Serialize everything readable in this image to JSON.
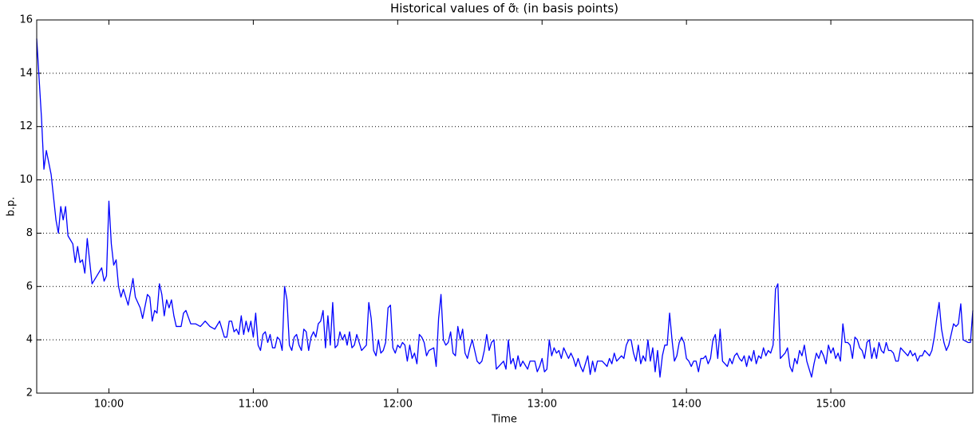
{
  "chart_data": {
    "type": "line",
    "title": "Historical values of σ̃ₜ (in basis points)",
    "xlabel": "Time",
    "ylabel": "b.p.",
    "x": [
      570,
      572,
      573,
      574,
      576,
      578,
      579,
      580,
      581,
      582,
      583,
      585,
      586,
      587,
      588,
      589,
      590,
      591,
      593,
      595,
      597,
      598,
      599,
      600,
      601,
      602,
      603,
      604,
      605,
      606,
      608,
      610,
      611,
      613,
      614,
      616,
      617,
      618,
      619,
      620,
      621,
      622,
      623,
      624,
      625,
      626,
      627,
      628,
      630,
      631,
      632,
      634,
      636,
      638,
      640,
      642,
      644,
      646,
      648,
      649,
      650,
      651,
      652,
      653,
      654,
      655,
      656,
      657,
      658,
      659,
      660,
      661,
      662,
      663,
      664,
      665,
      666,
      667,
      668,
      669,
      670,
      671,
      672,
      673,
      674,
      675,
      676,
      677,
      678,
      679,
      680,
      681,
      682,
      683,
      684,
      685,
      686,
      687,
      688,
      689,
      690,
      691,
      692,
      693,
      694,
      695,
      696,
      697,
      698,
      699,
      700,
      701,
      702,
      703,
      705,
      707,
      708,
      709,
      710,
      711,
      712,
      713,
      714,
      715,
      716,
      717,
      718,
      719,
      720,
      721,
      722,
      723,
      724,
      725,
      726,
      727,
      728,
      729,
      730,
      731,
      732,
      733,
      735,
      736,
      737,
      738,
      739,
      740,
      741,
      742,
      743,
      744,
      745,
      746,
      747,
      748,
      749,
      750,
      751,
      752,
      753,
      754,
      755,
      756,
      757,
      758,
      759,
      760,
      761,
      763,
      764,
      765,
      766,
      767,
      768,
      769,
      770,
      771,
      772,
      774,
      775,
      777,
      778,
      779,
      780,
      781,
      782,
      783,
      784,
      785,
      786,
      787,
      788,
      789,
      790,
      791,
      792,
      793,
      794,
      795,
      796,
      797,
      798,
      799,
      800,
      801,
      802,
      803,
      805,
      806,
      807,
      808,
      809,
      810,
      811,
      812,
      813,
      814,
      815,
      816,
      817,
      818,
      819,
      820,
      821,
      822,
      823,
      824,
      825,
      826,
      827,
      828,
      829,
      830,
      831,
      832,
      833,
      834,
      835,
      836,
      837,
      838,
      839,
      840,
      841,
      842,
      843,
      844,
      845,
      846,
      847,
      848,
      849,
      850,
      851,
      852,
      853,
      854,
      855,
      856,
      857,
      858,
      859,
      860,
      861,
      862,
      863,
      864,
      865,
      866,
      867,
      868,
      869,
      870,
      871,
      872,
      873,
      874,
      875,
      876,
      877,
      878,
      879,
      880,
      881,
      882,
      883,
      884,
      885,
      886,
      887,
      888,
      889,
      890,
      891,
      892,
      893,
      894,
      895,
      896,
      897,
      898,
      899,
      900,
      901,
      902,
      903,
      904,
      905,
      906,
      907,
      908,
      909,
      910,
      911,
      912,
      913,
      914,
      915,
      916,
      917,
      918,
      919,
      920,
      921,
      922,
      923,
      924,
      925,
      926,
      927,
      928,
      929,
      930,
      931,
      932,
      933,
      934,
      935,
      936,
      937,
      938,
      939,
      940,
      941,
      942,
      943,
      944,
      945,
      946,
      947,
      948,
      949,
      950,
      951,
      952,
      953,
      954,
      955,
      956,
      957,
      958,
      959
    ],
    "series": [
      {
        "name": "sigma",
        "color": "#0000ff",
        "values": [
          15.3,
          12.3,
          10.4,
          11.1,
          10.2,
          8.5,
          8.0,
          9.0,
          8.5,
          9.0,
          7.9,
          7.6,
          6.9,
          7.5,
          6.9,
          7.0,
          6.5,
          7.8,
          6.1,
          6.4,
          6.7,
          6.2,
          6.4,
          9.2,
          7.6,
          6.8,
          7.0,
          6.0,
          5.6,
          5.9,
          5.3,
          6.3,
          5.6,
          5.2,
          4.8,
          5.7,
          5.6,
          4.7,
          5.1,
          5.0,
          6.1,
          5.7,
          4.9,
          5.5,
          5.2,
          5.5,
          4.9,
          4.5,
          4.5,
          5.0,
          5.1,
          4.6,
          4.6,
          4.5,
          4.7,
          4.5,
          4.4,
          4.7,
          4.1,
          4.1,
          4.7,
          4.7,
          4.3,
          4.4,
          4.2,
          4.9,
          4.2,
          4.7,
          4.3,
          4.7,
          4.1,
          5.0,
          3.8,
          3.6,
          4.2,
          4.3,
          3.9,
          4.2,
          3.7,
          3.7,
          4.1,
          4.0,
          3.6,
          6.0,
          5.5,
          3.8,
          3.6,
          4.1,
          4.2,
          3.8,
          3.6,
          4.4,
          4.3,
          3.6,
          4.1,
          4.3,
          4.1,
          4.6,
          4.7,
          5.1,
          3.7,
          4.9,
          3.8,
          5.4,
          3.7,
          3.8,
          4.3,
          4.0,
          4.2,
          3.8,
          4.3,
          3.7,
          3.8,
          4.2,
          3.6,
          3.8,
          5.4,
          4.8,
          3.6,
          3.4,
          4.0,
          3.5,
          3.6,
          3.9,
          5.2,
          5.3,
          3.7,
          3.5,
          3.8,
          3.7,
          3.9,
          3.8,
          3.2,
          3.8,
          3.3,
          3.5,
          3.1,
          4.2,
          4.1,
          3.9,
          3.4,
          3.6,
          3.7,
          3.0,
          4.8,
          5.7,
          4.0,
          3.8,
          3.9,
          4.3,
          3.5,
          3.4,
          4.5,
          4.0,
          4.4,
          3.5,
          3.3,
          3.7,
          4.0,
          3.6,
          3.2,
          3.1,
          3.2,
          3.6,
          4.2,
          3.6,
          3.9,
          4.0,
          2.9,
          3.1,
          3.2,
          2.9,
          4.0,
          3.1,
          3.3,
          2.9,
          3.4,
          3.0,
          3.2,
          2.9,
          3.2,
          3.2,
          2.8,
          3.0,
          3.3,
          2.8,
          2.9,
          4.0,
          3.4,
          3.7,
          3.5,
          3.6,
          3.3,
          3.7,
          3.5,
          3.3,
          3.5,
          3.3,
          3.0,
          3.3,
          3.0,
          2.8,
          3.1,
          3.4,
          2.7,
          3.2,
          2.8,
          3.2,
          3.2,
          3.1,
          3.0,
          3.3,
          3.1,
          3.5,
          3.2,
          3.3,
          3.4,
          3.3,
          3.8,
          4.0,
          4.0,
          3.5,
          3.2,
          3.8,
          3.1,
          3.4,
          3.2,
          4.0,
          3.2,
          3.7,
          2.8,
          3.6,
          2.6,
          3.4,
          3.8,
          3.8,
          5.0,
          4.0,
          3.2,
          3.4,
          3.9,
          4.1,
          3.9,
          3.3,
          3.2,
          3.0,
          3.2,
          3.2,
          2.8,
          3.3,
          3.3,
          3.4,
          3.1,
          3.3,
          4.0,
          4.2,
          3.3,
          4.4,
          3.2,
          3.1,
          3.0,
          3.3,
          3.1,
          3.4,
          3.5,
          3.3,
          3.2,
          3.4,
          3.0,
          3.4,
          3.2,
          3.6,
          3.1,
          3.4,
          3.3,
          3.7,
          3.4,
          3.6,
          3.5,
          3.8,
          5.9,
          6.1,
          3.3,
          3.4,
          3.5,
          3.7,
          3.0,
          2.8,
          3.3,
          3.1,
          3.6,
          3.4,
          3.8,
          3.2,
          2.9,
          2.6,
          3.1,
          3.5,
          3.3,
          3.6,
          3.4,
          3.1,
          3.8,
          3.5,
          3.7,
          3.3,
          3.5,
          3.2,
          4.6,
          3.9,
          3.9,
          3.8,
          3.3,
          4.1,
          4.0,
          3.7,
          3.6,
          3.3,
          3.9,
          4.0,
          3.3,
          3.7,
          3.3,
          3.9,
          3.6,
          3.5,
          3.9,
          3.6,
          3.6,
          3.5,
          3.2,
          3.2,
          3.7,
          3.6,
          3.5,
          3.4,
          3.6,
          3.4,
          3.5,
          3.2,
          3.4,
          3.4,
          3.6,
          3.5,
          3.4,
          3.6,
          4.1,
          4.8,
          5.4,
          4.4,
          3.9,
          3.6,
          3.8,
          4.2,
          4.6,
          4.5,
          4.6,
          5.35,
          4.0,
          3.95,
          3.9,
          3.9,
          5.1
        ]
      }
    ],
    "xlim": [
      570,
      959
    ],
    "xticks": [
      {
        "value": 600,
        "label": "10:00"
      },
      {
        "value": 660,
        "label": "11:00"
      },
      {
        "value": 720,
        "label": "12:00"
      },
      {
        "value": 780,
        "label": "13:00"
      },
      {
        "value": 840,
        "label": "14:00"
      },
      {
        "value": 900,
        "label": "15:00"
      }
    ],
    "ylim": [
      2,
      16
    ],
    "yticks": [
      2,
      4,
      6,
      8,
      10,
      12,
      14,
      16
    ],
    "grid": "y"
  }
}
